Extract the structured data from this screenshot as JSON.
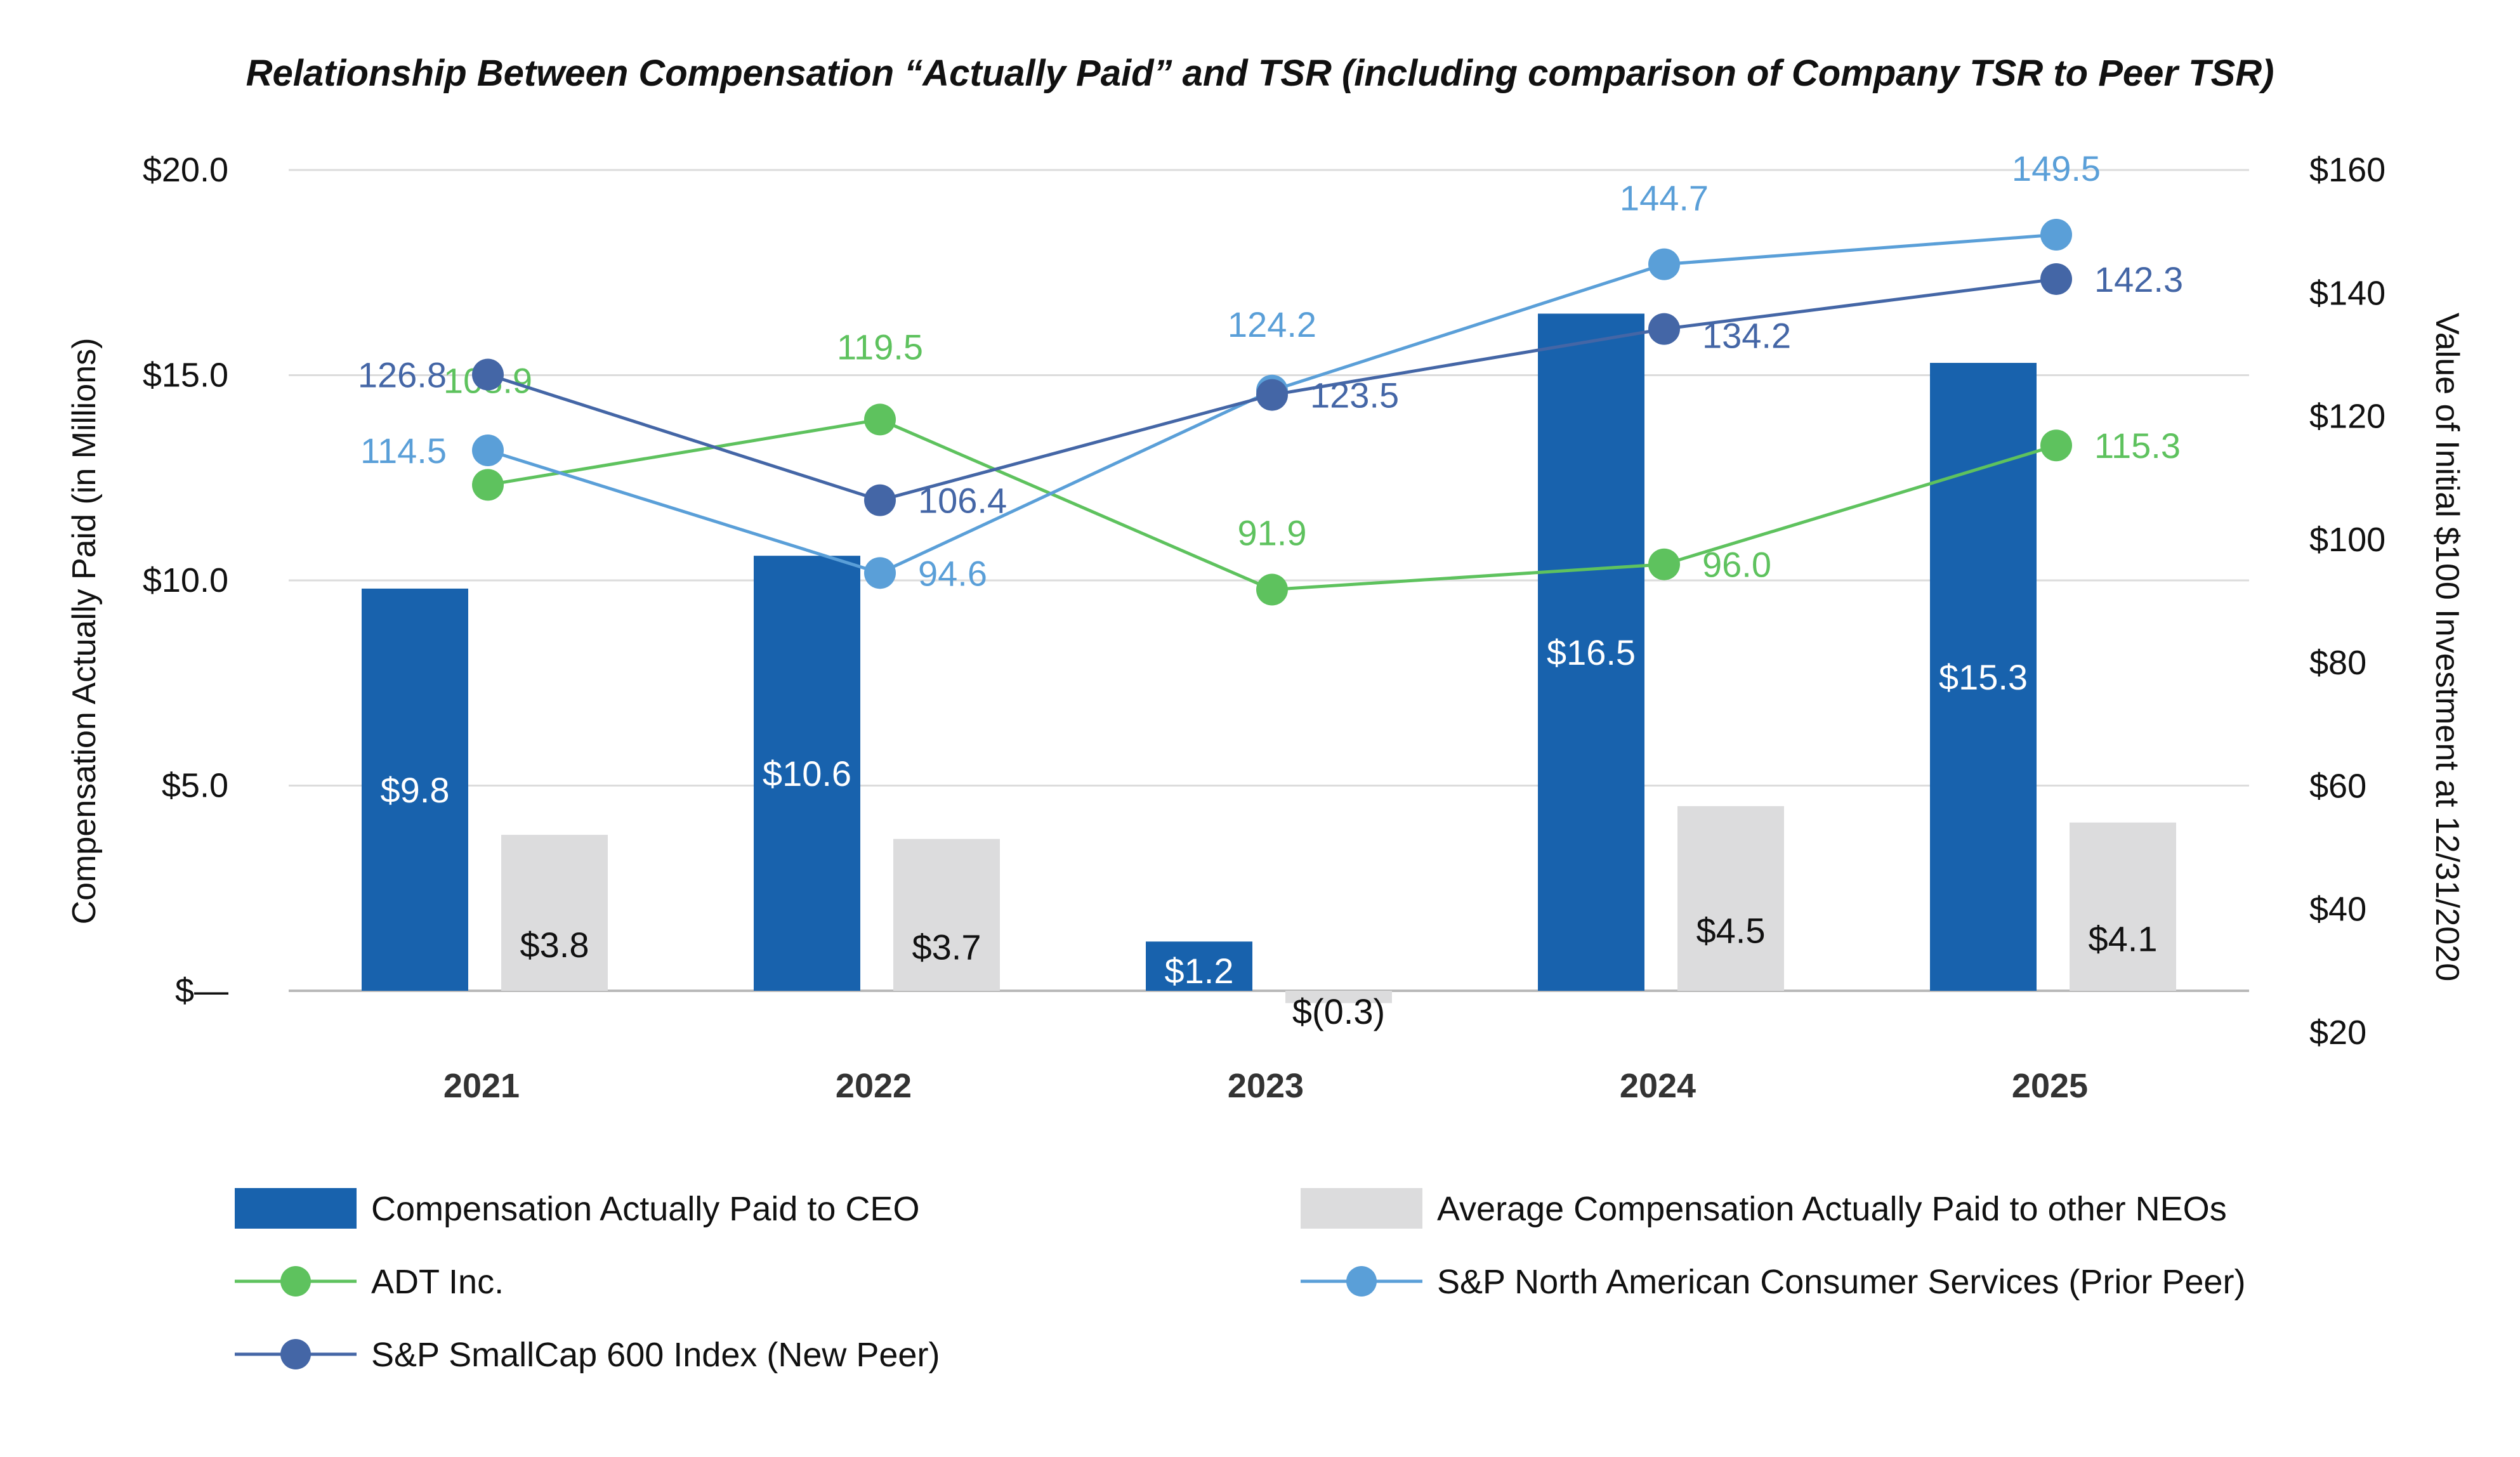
{
  "chart_data": {
    "type": "bar",
    "title": "Relationship Between Compensation “Actually Paid” and TSR (including comparison of Company TSR to Peer TSR)",
    "categories": [
      "2021",
      "2022",
      "2023",
      "2024",
      "2025"
    ],
    "y_left": {
      "label": "Compensation Actually Paid (in Millions)",
      "range": [
        0,
        20
      ],
      "ticks": [
        0,
        5,
        10,
        15,
        20
      ],
      "tick_labels": [
        "$—",
        "$5.0",
        "$10.0",
        "$15.0",
        "$20.0"
      ]
    },
    "y_right": {
      "label": "Value of Initial $100 Investment at 12/31/2020",
      "range": [
        20,
        160
      ],
      "ticks": [
        20,
        40,
        60,
        80,
        100,
        120,
        140,
        160
      ],
      "tick_labels": [
        "$20",
        "$40",
        "$60",
        "$80",
        "$100",
        "$120",
        "$140",
        "$160"
      ]
    },
    "grid": true,
    "legend_position": "bottom",
    "bar_series": [
      {
        "name": "Compensation Actually Paid to CEO",
        "color": "#1862ad",
        "label_color": "#ffffff",
        "values": [
          9.8,
          10.6,
          1.2,
          16.5,
          15.3
        ],
        "labels": [
          "$9.8",
          "$10.6",
          "$1.2",
          "$16.5",
          "$15.3"
        ]
      },
      {
        "name": "Average Compensation Actually Paid to other NEOs",
        "color": "#dcdcdd",
        "label_color": "#111111",
        "values": [
          3.8,
          3.7,
          -0.3,
          4.5,
          4.1
        ],
        "labels": [
          "$3.8",
          "$3.7",
          "$(0.3)",
          "$4.5",
          "$4.1"
        ]
      }
    ],
    "line_series": [
      {
        "name": "ADT Inc.",
        "color": "#5ec25e",
        "values": [
          108.9,
          119.5,
          91.9,
          96.0,
          115.3
        ],
        "labels": [
          "108.9",
          "119.5",
          "91.9",
          "96.0",
          "115.3"
        ]
      },
      {
        "name": "S&P North American Consumer Services (Prior Peer)",
        "color": "#5a9fd8",
        "values": [
          114.5,
          94.6,
          124.2,
          144.7,
          149.5
        ],
        "labels": [
          "114.5",
          "94.6",
          "124.2",
          "144.7",
          "149.5"
        ]
      },
      {
        "name": "S&P SmallCap 600 Index (New Peer)",
        "color": "#4466a6",
        "values": [
          126.8,
          106.4,
          123.5,
          134.2,
          142.3
        ],
        "labels": [
          "126.8",
          "106.4",
          "123.5",
          "134.2",
          "142.3"
        ]
      }
    ]
  }
}
